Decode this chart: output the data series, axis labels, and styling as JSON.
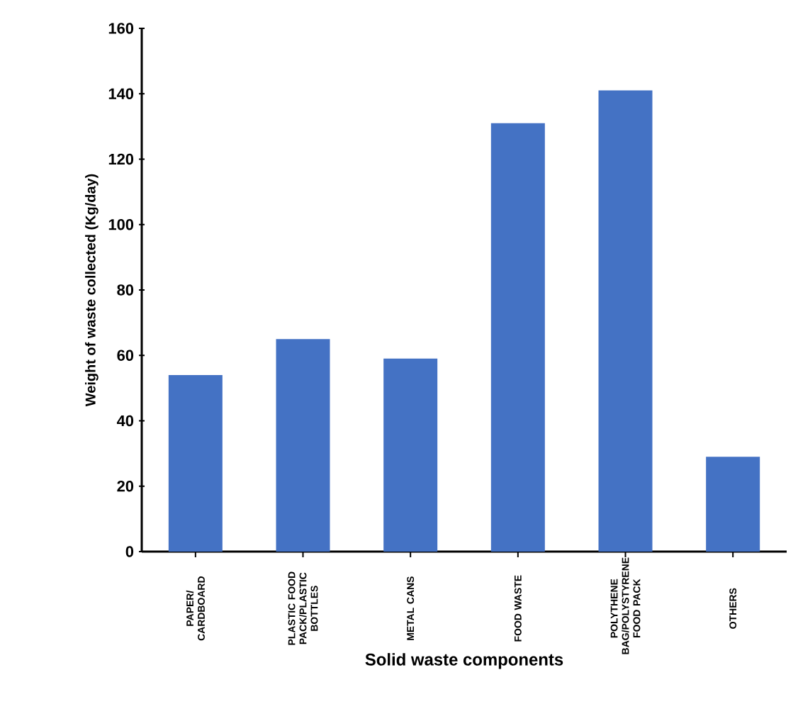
{
  "chart_data": {
    "type": "bar",
    "xlabel": "Solid waste components",
    "ylabel": "Weight of waste collected (Kg/day)",
    "categories": [
      "PAPER/ CARDBOARD",
      "PLASTIC FOOD PACK/PLASTIC BOTTLES",
      "METAL CANS",
      "FOOD WASTE",
      "POLYTHENE BAG/POLYSTYRENE FOOD PACK",
      "OTHERS"
    ],
    "values": [
      54,
      65,
      59,
      131,
      141,
      29
    ],
    "color": "#4472c4",
    "ylim": [
      0,
      160
    ],
    "yticks": [
      0,
      20,
      40,
      60,
      80,
      100,
      120,
      140,
      160
    ],
    "grid": false
  }
}
